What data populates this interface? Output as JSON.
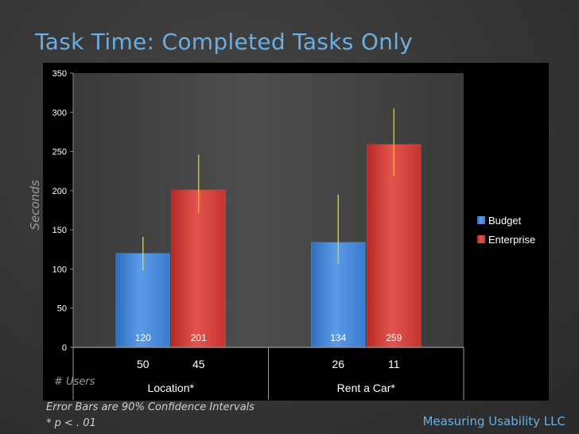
{
  "slide": {
    "title": "Task Time: Completed Tasks Only",
    "users_label": "# Users",
    "footnote_1": "Error Bars are 90% Confidence Intervals",
    "footnote_2": "* p < . 01",
    "brand": "Measuring Usability LLC"
  },
  "chart_data": {
    "type": "bar",
    "ylabel": "Seconds",
    "ylim": [
      0,
      350
    ],
    "yticks": [
      0,
      50,
      100,
      150,
      200,
      250,
      300,
      350
    ],
    "grid": false,
    "legend_position": "right",
    "categories": [
      "Location*",
      "Rent a Car*"
    ],
    "series": [
      {
        "name": "Budget",
        "color": "#4a8ad8",
        "values": [
          120,
          134
        ],
        "error_low": [
          98,
          107
        ],
        "error_high": [
          141,
          195
        ],
        "users": [
          50,
          26
        ]
      },
      {
        "name": "Enterprise",
        "color": "#d9413c",
        "values": [
          201,
          259
        ],
        "error_low": [
          172,
          219
        ],
        "error_high": [
          246,
          305
        ],
        "users": [
          45,
          11
        ]
      }
    ],
    "error_bar_color": "#e6d800"
  }
}
